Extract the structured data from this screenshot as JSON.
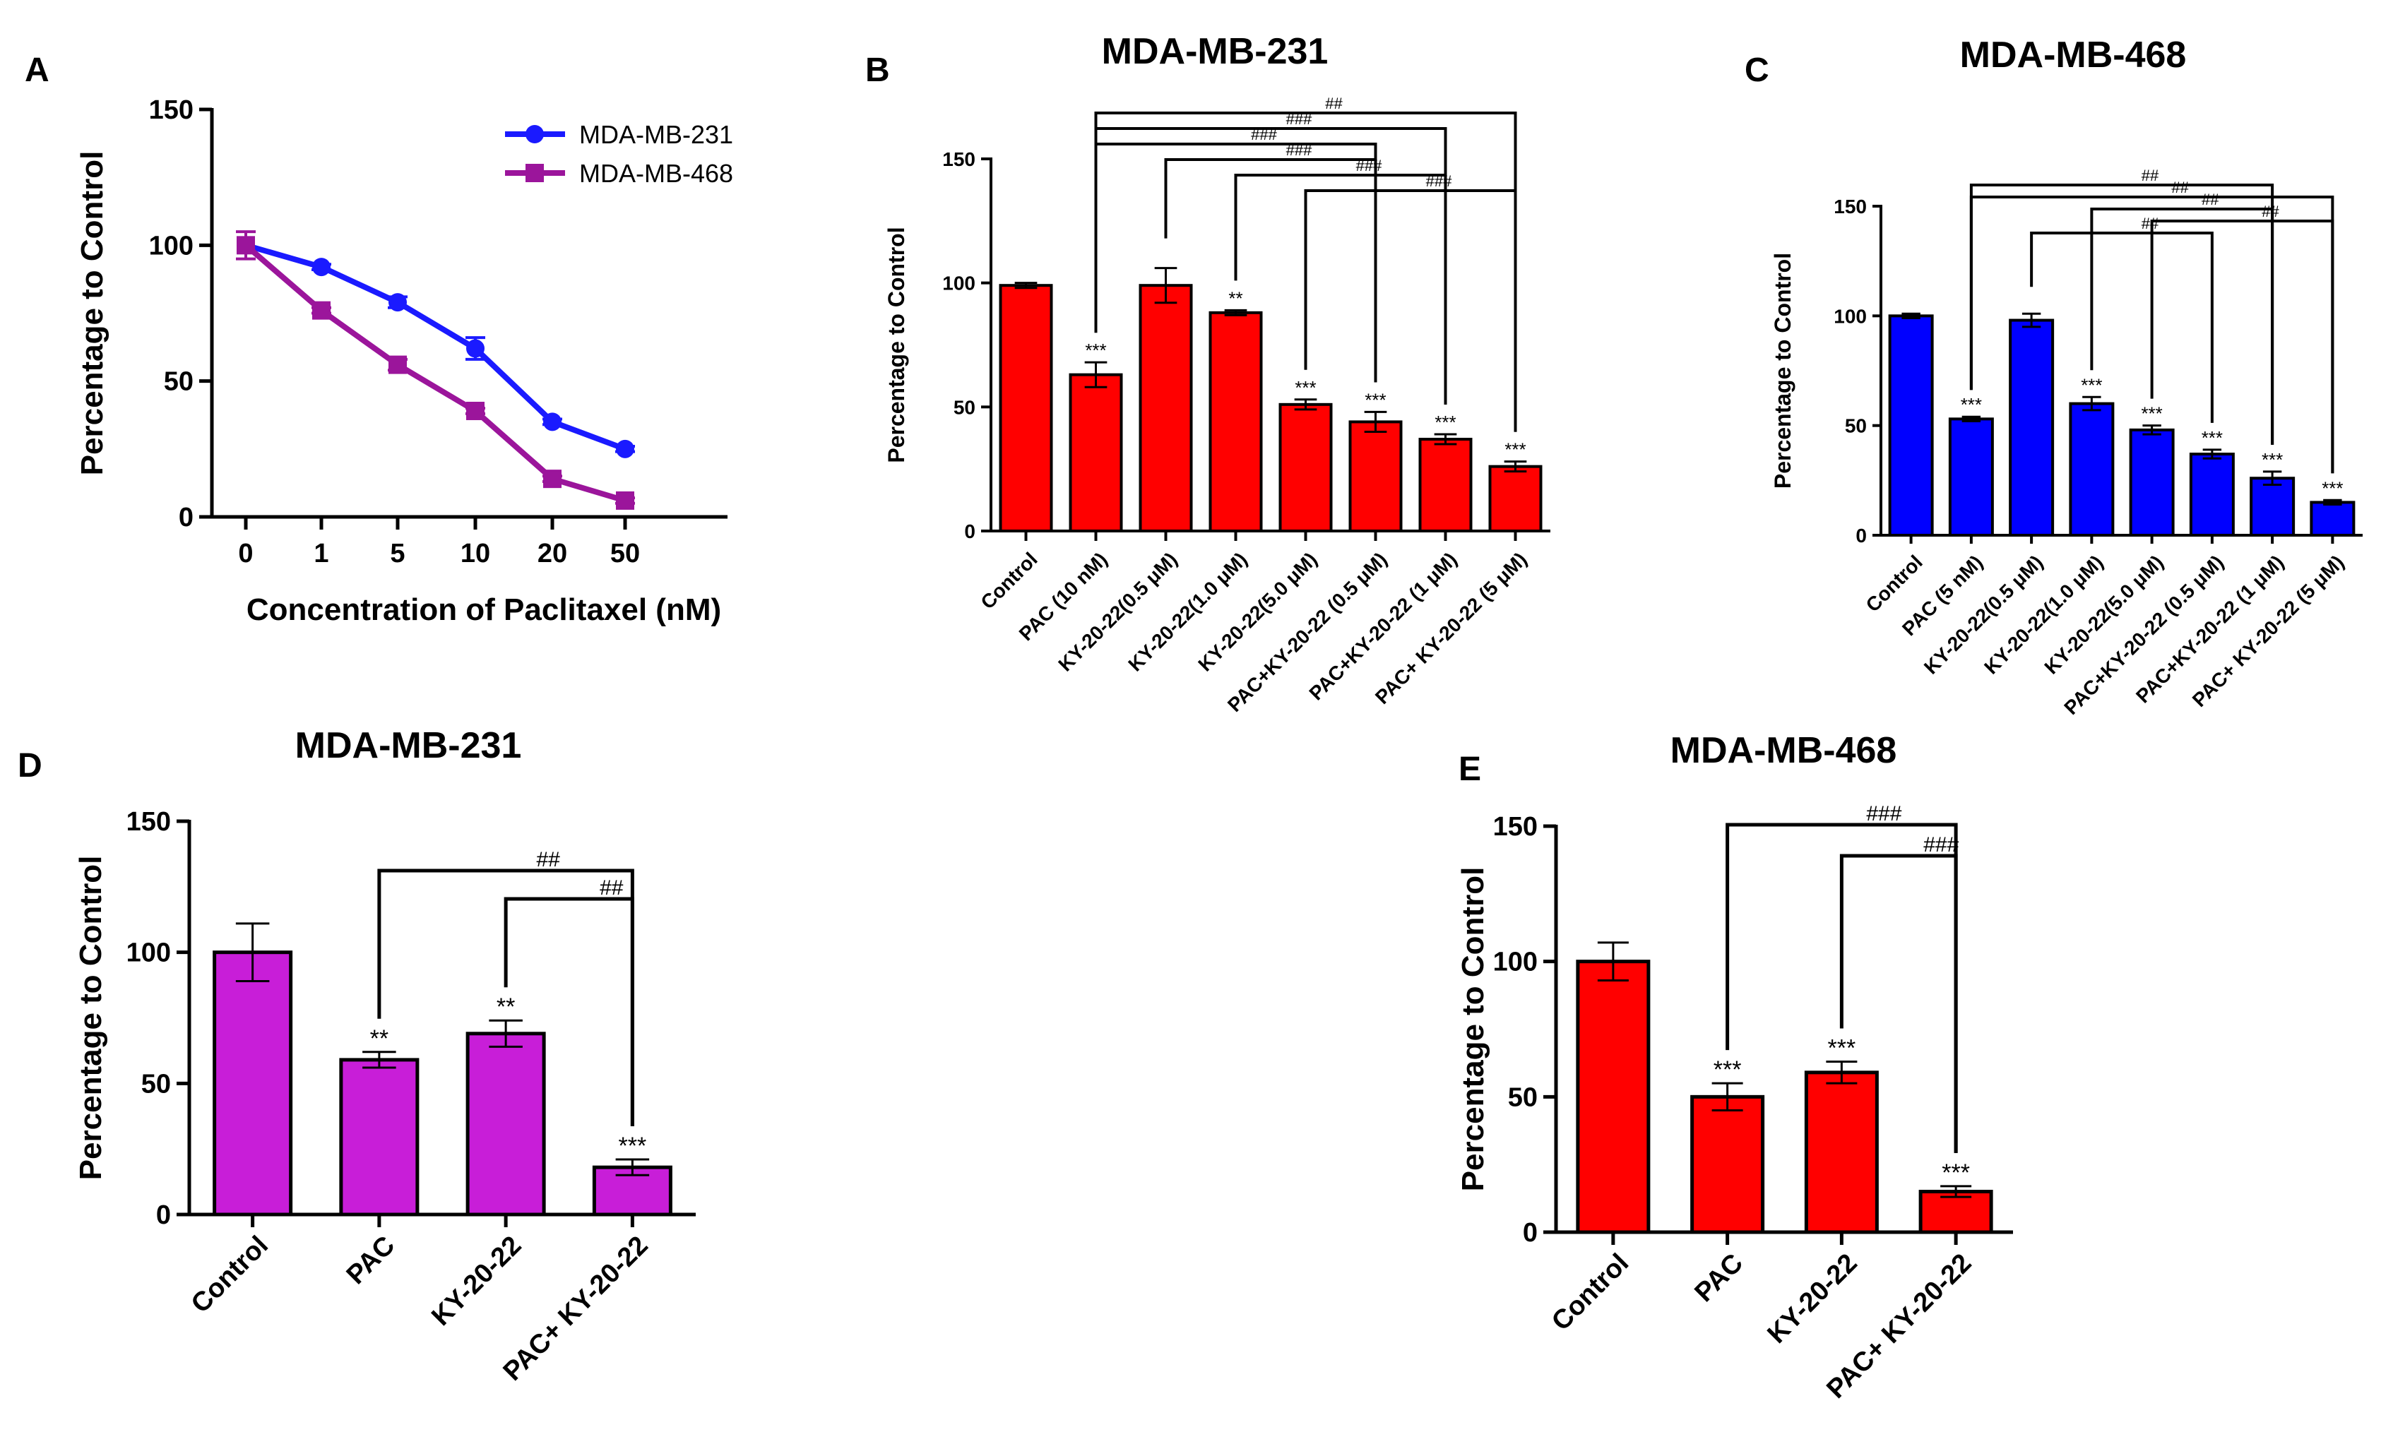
{
  "chart_data": [
    {
      "id": "A",
      "type": "line",
      "panel_label": "A",
      "title": "",
      "xlabel": "Concentration of Paclitaxel (nM)",
      "ylabel": "Percentage to Control",
      "categories": [
        "0",
        "1",
        "5",
        "10",
        "20",
        "50"
      ],
      "yticks": [
        "0",
        "50",
        "100",
        "150"
      ],
      "ylim": [
        0,
        150
      ],
      "legend_position": "top-right",
      "series": [
        {
          "name": "MDA-MB-231",
          "color": "#1a1aff",
          "marker": "circle",
          "values": [
            100,
            92,
            79,
            62,
            35,
            25
          ],
          "errors": [
            0,
            1,
            2,
            4,
            1,
            1
          ]
        },
        {
          "name": "MDA-MB-468",
          "color": "#9b159b",
          "marker": "square",
          "values": [
            100,
            76,
            56,
            39,
            14,
            6
          ],
          "errors": [
            5,
            1,
            2,
            1,
            1,
            1
          ]
        }
      ]
    },
    {
      "id": "B",
      "type": "bar",
      "panel_label": "B",
      "title": "MDA-MB-231",
      "ylabel": "Percentage to Control",
      "bar_color": "#ff0000",
      "categories": [
        "Control",
        "PAC (10 nM)",
        "KY-20-22(0.5 μM)",
        "KY-20-22(1.0 μM)",
        "KY-20-22(5.0 μM)",
        "PAC+KY-20-22 (0.5 μM)",
        "PAC+KY-20-22 (1 μM)",
        "PAC+ KY-20-22 (5 μM)"
      ],
      "values": [
        99,
        63,
        99,
        88,
        51,
        44,
        37,
        26
      ],
      "errors": [
        1,
        5,
        7,
        1,
        2,
        4,
        2,
        2
      ],
      "significance": [
        "",
        "***",
        "",
        "**",
        "***",
        "***",
        "***",
        "***"
      ],
      "yticks": [
        "0",
        "50",
        "100",
        "150"
      ],
      "ylim": [
        0,
        150
      ],
      "brackets": [
        {
          "from": 1,
          "to": 7,
          "label": "##"
        },
        {
          "from": 1,
          "to": 6,
          "label": "###"
        },
        {
          "from": 1,
          "to": 5,
          "label": "###"
        },
        {
          "from": 2,
          "to": 5,
          "label": "###"
        },
        {
          "from": 3,
          "to": 6,
          "label": "###"
        },
        {
          "from": 4,
          "to": 7,
          "label": "###"
        }
      ]
    },
    {
      "id": "C",
      "type": "bar",
      "panel_label": "C",
      "title": "MDA-MB-468",
      "ylabel": "Percentage to Control",
      "bar_color": "#0000ff",
      "categories": [
        "Control",
        "PAC (5 nM)",
        "KY-20-22(0.5 μM)",
        "KY-20-22(1.0 μM)",
        "KY-20-22(5.0 μM)",
        "PAC+KY-20-22 (0.5 μM)",
        "PAC+KY-20-22 (1 μM)",
        "PAC+ KY-20-22 (5 μM)"
      ],
      "values": [
        100,
        53,
        98,
        60,
        48,
        37,
        26,
        15
      ],
      "errors": [
        1,
        1,
        3,
        3,
        2,
        2,
        3,
        1
      ],
      "significance": [
        "",
        "***",
        "",
        "***",
        "***",
        "***",
        "***",
        "***"
      ],
      "yticks": [
        "0",
        "50",
        "100",
        "150"
      ],
      "ylim": [
        0,
        150
      ],
      "brackets": [
        {
          "from": 1,
          "to": 6,
          "label": "##"
        },
        {
          "from": 1,
          "to": 7,
          "label": "##"
        },
        {
          "from": 3,
          "to": 6,
          "label": "##"
        },
        {
          "from": 4,
          "to": 7,
          "label": "##"
        },
        {
          "from": 2,
          "to": 5,
          "label": "##"
        }
      ]
    },
    {
      "id": "D",
      "type": "bar",
      "panel_label": "D",
      "title": "MDA-MB-231",
      "ylabel": "Percentage to Control",
      "bar_color": "#c81ed8",
      "categories": [
        "Control",
        "PAC",
        "KY-20-22",
        "PAC+ KY-20-22"
      ],
      "values": [
        100,
        59,
        69,
        18
      ],
      "errors": [
        11,
        3,
        5,
        3
      ],
      "significance": [
        "",
        "**",
        "**",
        "***"
      ],
      "yticks": [
        "0",
        "50",
        "100",
        "150"
      ],
      "ylim": [
        0,
        150
      ],
      "brackets": [
        {
          "from": 1,
          "to": 3,
          "label": "##"
        },
        {
          "from": 2,
          "to": 3,
          "label": "##"
        }
      ]
    },
    {
      "id": "E",
      "type": "bar",
      "panel_label": "E",
      "title": "MDA-MB-468",
      "ylabel": "Percentage to Control",
      "bar_color": "#ff0000",
      "categories": [
        "Control",
        "PAC",
        "KY-20-22",
        "PAC+ KY-20-22"
      ],
      "values": [
        100,
        50,
        59,
        15
      ],
      "errors": [
        7,
        5,
        4,
        2
      ],
      "significance": [
        "",
        "***",
        "***",
        "***"
      ],
      "yticks": [
        "0",
        "50",
        "100",
        "150"
      ],
      "ylim": [
        0,
        150
      ],
      "brackets": [
        {
          "from": 1,
          "to": 3,
          "label": "###"
        },
        {
          "from": 2,
          "to": 3,
          "label": "###"
        }
      ]
    }
  ]
}
